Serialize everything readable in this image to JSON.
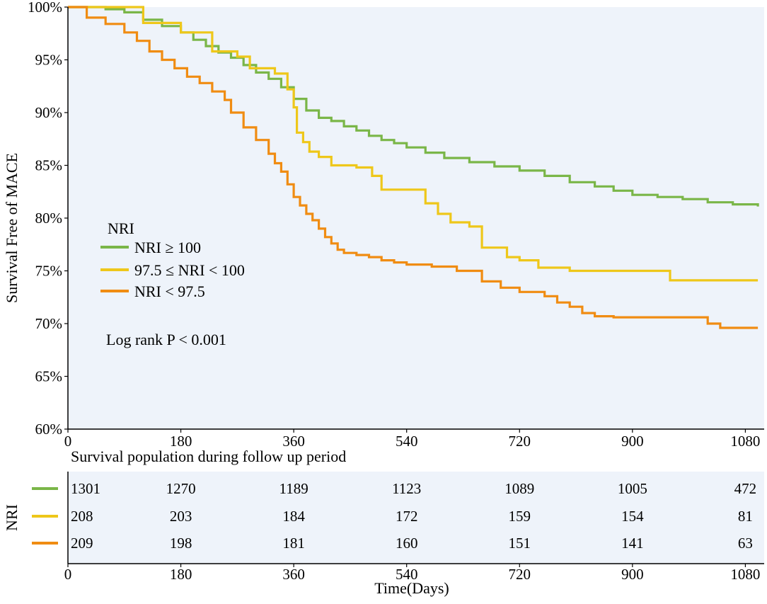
{
  "colors": {
    "panel_bg": "#eef3fa",
    "axis": "#000000",
    "NRI >= 100": "#7ab648",
    "97.5 <= NRI < 100": "#eec71a",
    "NRI < 97.5": "#f08c12"
  },
  "chart_data": {
    "type": "line",
    "subtype": "kaplan-meier-step",
    "title": "",
    "xlabel": "Time(Days)",
    "ylabel": "Survival Free of  MACE",
    "xlim": [
      0,
      1110
    ],
    "ylim": [
      60,
      100
    ],
    "x_ticks": [
      0,
      180,
      360,
      540,
      720,
      900,
      1080
    ],
    "x_tick_labels": [
      "0",
      "180",
      "360",
      "540",
      "720",
      "900",
      "1080"
    ],
    "y_ticks": [
      60,
      65,
      70,
      75,
      80,
      85,
      90,
      95,
      100
    ],
    "y_tick_labels": [
      "60%",
      "65%",
      "70%",
      "75%",
      "80%",
      "85%",
      "90%",
      "95%",
      "100%"
    ],
    "legend": {
      "title": "NRI",
      "entries": [
        "NRI ≥ 100",
        "97.5 ≤ NRI < 100",
        "NRI < 97.5"
      ],
      "placement": "middle-left"
    },
    "annotation": "Log rank P < 0.001",
    "series": [
      {
        "name": "NRI ≥ 100",
        "color_key": "NRI >= 100",
        "x": [
          0,
          30,
          60,
          90,
          120,
          150,
          180,
          200,
          220,
          240,
          260,
          280,
          300,
          320,
          340,
          360,
          380,
          400,
          420,
          440,
          460,
          480,
          500,
          520,
          540,
          570,
          600,
          640,
          680,
          720,
          760,
          800,
          840,
          870,
          900,
          940,
          980,
          1020,
          1060,
          1100
        ],
        "y": [
          100,
          100,
          99.8,
          99.5,
          98.8,
          98.2,
          97.6,
          96.9,
          96.3,
          95.7,
          95.2,
          94.5,
          93.8,
          93.2,
          92.4,
          91.3,
          90.2,
          89.5,
          89.2,
          88.7,
          88.3,
          87.8,
          87.4,
          87.1,
          86.7,
          86.2,
          85.7,
          85.3,
          84.9,
          84.5,
          84.0,
          83.4,
          83.0,
          82.6,
          82.2,
          82.0,
          81.8,
          81.5,
          81.3,
          81.1
        ]
      },
      {
        "name": "97.5 ≤ NRI < 100",
        "color_key": "97.5 <= NRI < 100",
        "x": [
          0,
          60,
          120,
          180,
          230,
          270,
          290,
          330,
          350,
          360,
          365,
          375,
          385,
          400,
          420,
          440,
          460,
          485,
          500,
          540,
          570,
          590,
          610,
          640,
          660,
          700,
          720,
          750,
          800,
          840,
          900,
          930,
          960,
          1100
        ],
        "y": [
          100,
          100,
          98.5,
          97.6,
          95.8,
          95.3,
          94.2,
          93.7,
          92.2,
          90.5,
          88.1,
          87.2,
          86.3,
          85.8,
          85.0,
          85.0,
          84.8,
          84.0,
          82.7,
          82.7,
          81.4,
          80.4,
          79.6,
          79.2,
          77.2,
          76.3,
          76.0,
          75.3,
          75.0,
          75.0,
          75.0,
          75.0,
          74.1,
          74.1
        ]
      },
      {
        "name": "NRI < 97.5",
        "color_key": "NRI < 97.5",
        "x": [
          0,
          30,
          60,
          90,
          110,
          130,
          150,
          170,
          190,
          210,
          230,
          250,
          260,
          280,
          300,
          320,
          330,
          340,
          350,
          360,
          370,
          380,
          390,
          400,
          410,
          420,
          430,
          440,
          460,
          480,
          500,
          520,
          540,
          580,
          620,
          660,
          690,
          720,
          760,
          780,
          800,
          820,
          840,
          870,
          900,
          940,
          980,
          1010,
          1020,
          1040,
          1100
        ],
        "y": [
          100,
          99.0,
          98.4,
          97.6,
          96.8,
          95.8,
          95.0,
          94.2,
          93.4,
          92.8,
          92.0,
          91.2,
          90.0,
          88.6,
          87.4,
          86.1,
          85.2,
          84.4,
          83.2,
          82.0,
          81.2,
          80.4,
          79.8,
          79.0,
          78.2,
          77.6,
          77.0,
          76.7,
          76.5,
          76.3,
          76.0,
          75.8,
          75.6,
          75.4,
          75.0,
          74.0,
          73.4,
          73.0,
          72.6,
          72.0,
          71.6,
          71.0,
          70.7,
          70.6,
          70.6,
          70.6,
          70.6,
          70.6,
          70.0,
          69.6,
          69.6
        ]
      }
    ],
    "risk_table": {
      "title": "Survival population during follow up period",
      "row_label": "NRI",
      "times": [
        "0",
        "180",
        "360",
        "540",
        "720",
        "900",
        "1080"
      ],
      "rows": [
        {
          "color_key": "NRI >= 100",
          "counts": [
            "1301",
            "1270",
            "1189",
            "1123",
            "1089",
            "1005",
            "472"
          ]
        },
        {
          "color_key": "97.5 <= NRI < 100",
          "counts": [
            "208",
            "203",
            "184",
            "172",
            "159",
            "154",
            "81"
          ]
        },
        {
          "color_key": "NRI < 97.5",
          "counts": [
            "209",
            "198",
            "181",
            "160",
            "151",
            "141",
            "63"
          ]
        }
      ],
      "x_ticks": [
        0,
        180,
        360,
        540,
        720,
        900,
        1080
      ],
      "x_tick_labels": [
        "0",
        "180",
        "360",
        "540",
        "720",
        "900",
        "1080"
      ],
      "xlabel": "Time(Days)"
    }
  }
}
